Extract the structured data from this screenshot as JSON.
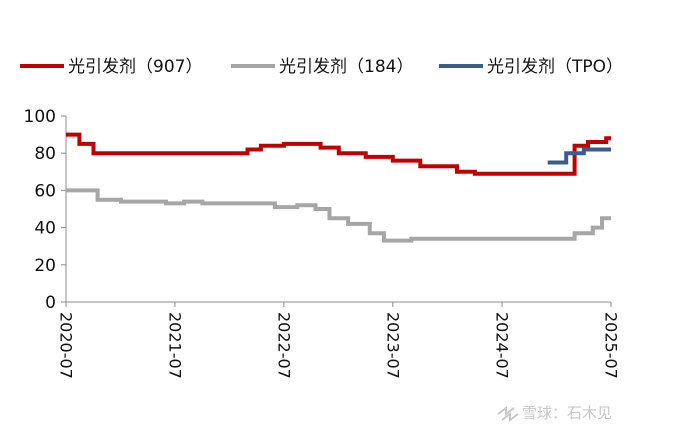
{
  "chart_data": {
    "type": "line",
    "title": "",
    "xlabel": "",
    "ylabel": "",
    "ylim": [
      0,
      100
    ],
    "yticks": [
      "0",
      "20",
      "40",
      "60",
      "80",
      "100"
    ],
    "xticks": [
      "2020-07",
      "2021-07",
      "2022-07",
      "2023-07",
      "2024-07",
      "2025-07"
    ],
    "grid": false,
    "legend_position": "top",
    "series": [
      {
        "name": "光引发剂（907）",
        "color": "#c00000",
        "x": [
          "2020-07-01",
          "2020-08-15",
          "2020-08-15",
          "2020-10-01",
          "2020-10-01",
          "2021-01-01",
          "2021-04-01",
          "2021-07-01",
          "2021-10-01",
          "2022-01-01",
          "2022-03-01",
          "2022-03-01",
          "2022-04-15",
          "2022-04-15",
          "2022-07-01",
          "2022-07-01",
          "2022-11-01",
          "2022-11-01",
          "2023-01-01",
          "2023-01-01",
          "2023-04-01",
          "2023-04-01",
          "2023-07-01",
          "2023-07-01",
          "2023-10-01",
          "2023-10-01",
          "2024-02-01",
          "2024-02-01",
          "2024-04-01",
          "2024-04-01",
          "2025-03-01",
          "2025-03-01",
          "2025-04-15",
          "2025-04-15",
          "2025-06-15",
          "2025-06-15",
          "2025-07-01"
        ],
        "values": [
          90,
          90,
          85,
          85,
          80,
          80,
          80,
          80,
          80,
          80,
          80,
          82,
          82,
          84,
          84,
          85,
          85,
          83,
          83,
          80,
          80,
          78,
          78,
          76,
          76,
          73,
          73,
          70,
          70,
          69,
          69,
          84,
          84,
          86,
          86,
          88,
          88
        ]
      },
      {
        "name": "光引发剂（184）",
        "color": "#a6a6a6",
        "x": [
          "2020-07-01",
          "2020-10-15",
          "2020-10-15",
          "2021-01-01",
          "2021-01-01",
          "2021-06-01",
          "2021-06-01",
          "2021-08-01",
          "2021-08-01",
          "2021-10-01",
          "2021-10-01",
          "2022-06-01",
          "2022-06-01",
          "2022-08-15",
          "2022-08-15",
          "2022-10-15",
          "2022-10-15",
          "2022-12-01",
          "2022-12-01",
          "2023-02-01",
          "2023-02-01",
          "2023-04-15",
          "2023-04-15",
          "2023-06-01",
          "2023-06-01",
          "2023-09-01",
          "2023-09-01",
          "2025-03-01",
          "2025-03-01",
          "2025-05-01",
          "2025-05-01",
          "2025-06-01",
          "2025-06-01",
          "2025-07-01"
        ],
        "values": [
          60,
          60,
          55,
          55,
          54,
          54,
          53,
          53,
          54,
          54,
          53,
          53,
          51,
          51,
          52,
          52,
          50,
          50,
          45,
          45,
          42,
          42,
          37,
          37,
          33,
          33,
          34,
          34,
          37,
          37,
          40,
          40,
          45,
          45
        ]
      },
      {
        "name": "光引发剂（TPO）",
        "color": "#3a5e8c",
        "x": [
          "2024-12-01",
          "2025-02-01",
          "2025-02-01",
          "2025-04-01",
          "2025-04-01",
          "2025-07-01"
        ],
        "values": [
          75,
          75,
          80,
          80,
          82,
          82
        ]
      }
    ]
  },
  "watermark": {
    "text": "雪球：石木见",
    "icon": "snowball-logo-icon"
  }
}
